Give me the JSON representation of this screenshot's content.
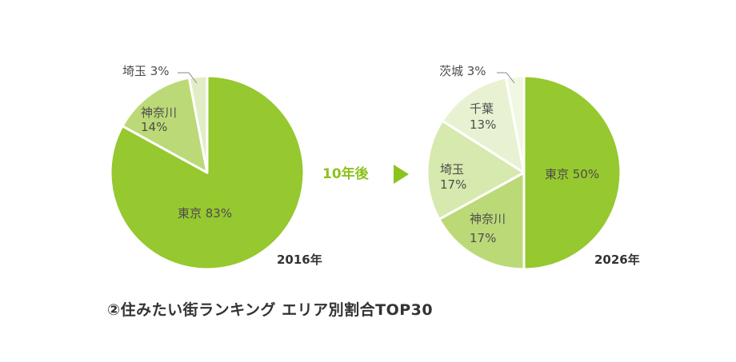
{
  "colors": {
    "tokyo": "#96c82f",
    "kanagawa": "#bcd977",
    "saitama_left": "#e1edc6",
    "saitama_right": "#d6e9ae",
    "chiba": "#e8f2d2",
    "ibaraki": "#f1f7e3",
    "arrow": "#8dc21f",
    "leader": "#888888"
  },
  "chart_data": [
    {
      "type": "pie",
      "year_label": "2016年",
      "slices": [
        {
          "key": "tokyo",
          "name": "東京",
          "value": 83,
          "display": "83%",
          "color": "#96c82f"
        },
        {
          "key": "kanagawa",
          "name": "神奈川",
          "value": 14,
          "display": "14%",
          "color": "#bcd977"
        },
        {
          "key": "saitama",
          "name": "埼玉",
          "value": 3,
          "display": "3%",
          "color": "#e1edc6"
        }
      ]
    },
    {
      "type": "pie",
      "year_label": "2026年",
      "slices": [
        {
          "key": "tokyo",
          "name": "東京",
          "value": 50,
          "display": "50%",
          "color": "#96c82f"
        },
        {
          "key": "kanagawa",
          "name": "神奈川",
          "value": 17,
          "display": "17%",
          "color": "#bcd977"
        },
        {
          "key": "saitama",
          "name": "埼玉",
          "value": 17,
          "display": "17%",
          "color": "#d6e9ae"
        },
        {
          "key": "chiba",
          "name": "千葉",
          "value": 13,
          "display": "13%",
          "color": "#e8f2d2"
        },
        {
          "key": "ibaraki",
          "name": "茨城",
          "value": 3,
          "display": "3%",
          "color": "#f1f7e3"
        }
      ]
    }
  ],
  "arrow_label": "10年後",
  "caption": "②住みたい街ランキング エリア別割合TOP30"
}
